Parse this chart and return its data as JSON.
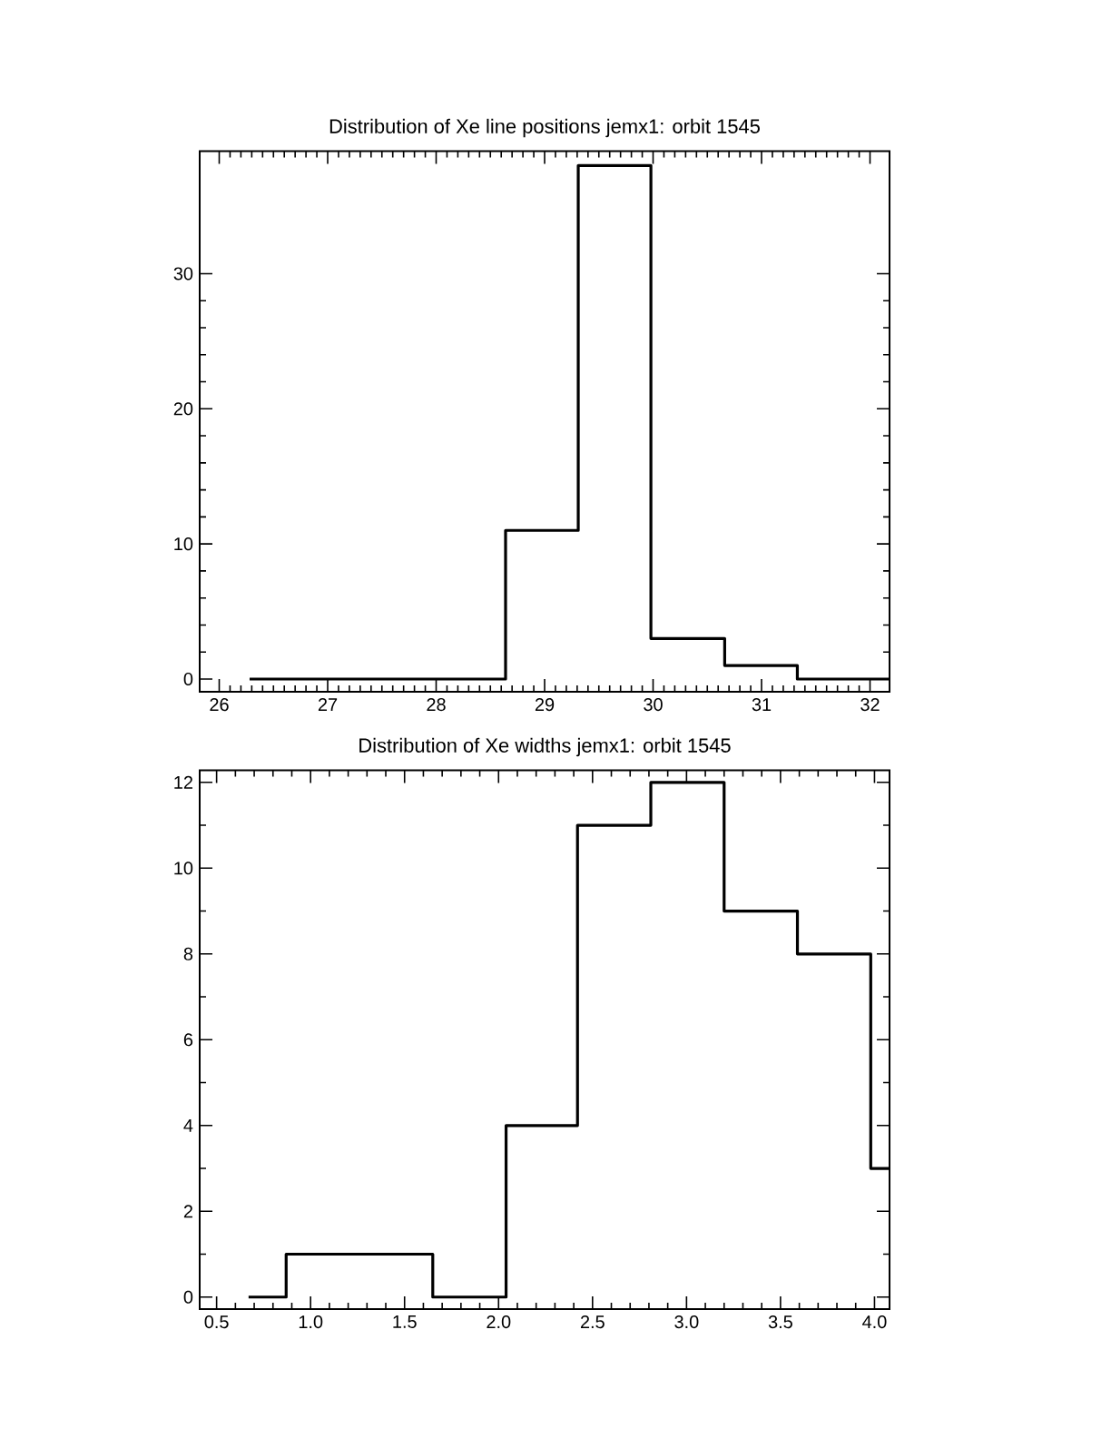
{
  "chart_data": [
    {
      "type": "histogram",
      "title": "Distribution of Xe line positions jemx1: orbit 1545",
      "bins": [
        26.28,
        28.64,
        29.31,
        29.98,
        30.66,
        31.33,
        32.18
      ],
      "values": [
        0,
        11,
        38,
        3,
        1,
        0
      ],
      "color": "#000000",
      "xlim": [
        25.82,
        32.18
      ],
      "ylim": [
        -0.94,
        39.06
      ],
      "xticks": [
        26,
        27,
        28,
        29,
        30,
        31,
        32
      ],
      "yticks": [
        0,
        10,
        20,
        30
      ]
    },
    {
      "type": "histogram",
      "title": "Distribution of Xe widths jemx1: orbit 1545",
      "bins": [
        0.67,
        0.87,
        1.65,
        2.04,
        2.42,
        2.81,
        3.2,
        3.59,
        3.98,
        4.08
      ],
      "values": [
        0,
        1,
        0,
        4,
        11,
        12,
        9,
        8,
        3
      ],
      "color": "#000000",
      "xlim": [
        0.41,
        4.08
      ],
      "ylim": [
        -0.28,
        12.28
      ],
      "xticks": [
        0.5,
        {
          "value": 1,
          "label": "1.0"
        },
        1.5,
        {
          "value": 2,
          "label": "2.0"
        },
        2.5,
        {
          "value": 3,
          "label": "3.0"
        },
        3.5,
        {
          "value": 4,
          "label": "4.0"
        }
      ],
      "yticks": [
        0,
        2,
        4,
        6,
        8,
        10,
        12
      ]
    }
  ]
}
